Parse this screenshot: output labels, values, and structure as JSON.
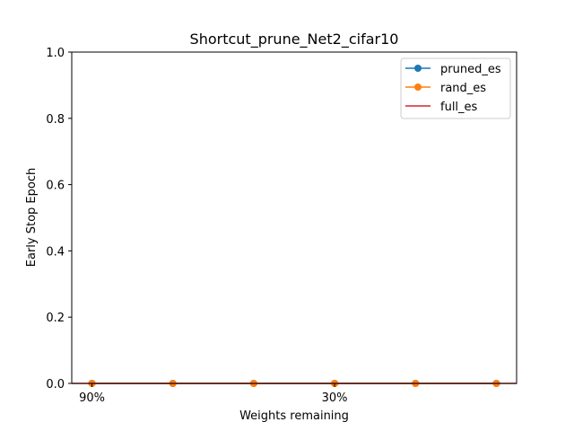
{
  "chart_data": {
    "type": "line",
    "title": "Shortcut_prune_Net2_cifar10",
    "xlabel": "Weights remaining",
    "ylabel": "Early Stop Epoch",
    "ylim": [
      0,
      1
    ],
    "yticks": [
      "0.0",
      "0.2",
      "0.4",
      "0.6",
      "0.8",
      "1.0"
    ],
    "ytick_values": [
      0,
      0.2,
      0.4,
      0.6,
      0.8,
      1.0
    ],
    "x": [
      1,
      2,
      3,
      4,
      5,
      6
    ],
    "xlim": [
      0.75,
      6.25
    ],
    "xtick_positions": [
      1,
      4
    ],
    "xtick_labels": [
      "90%",
      "30%"
    ],
    "series": [
      {
        "name": "pruned_es",
        "values": [
          0,
          0,
          0,
          0,
          0,
          0
        ],
        "color": "#1f77b4",
        "marker": "circle"
      },
      {
        "name": "rand_es",
        "values": [
          0,
          0,
          0,
          0,
          0,
          0
        ],
        "color": "#ff7f0e",
        "marker": "circle"
      }
    ],
    "reference_lines": [
      {
        "name": "full_es",
        "value": 0,
        "color": "#d62728"
      }
    ],
    "legend_position": "top-right",
    "grid": false
  }
}
